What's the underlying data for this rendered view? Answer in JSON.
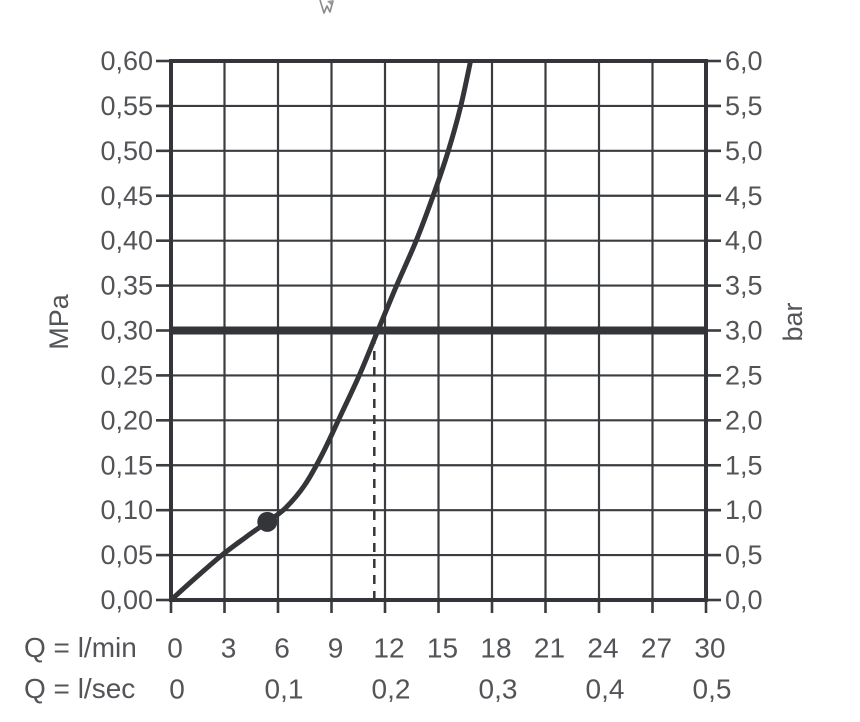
{
  "page": {
    "background": "#ffffff",
    "description_not_rendered": ""
  },
  "chart_data": {
    "type": "line",
    "grid": true,
    "colors": {
      "line": "#333539",
      "grid": "#3a3c3f",
      "text": "#525457",
      "background": "#ffffff"
    },
    "x_axis": {
      "label_lmin": "Q = l/min",
      "label_lsec": "Q = l/sec",
      "min": 0,
      "max": 30,
      "step": 3,
      "ticks_lmin": [
        {
          "q": 0,
          "label": "0"
        },
        {
          "q": 3,
          "label": "3"
        },
        {
          "q": 6,
          "label": "6"
        },
        {
          "q": 9,
          "label": "9"
        },
        {
          "q": 12,
          "label": "12"
        },
        {
          "q": 15,
          "label": "15"
        },
        {
          "q": 18,
          "label": "18"
        },
        {
          "q": 21,
          "label": "21"
        },
        {
          "q": 24,
          "label": "24"
        },
        {
          "q": 27,
          "label": "27"
        },
        {
          "q": 30,
          "label": "30"
        }
      ],
      "ticks_lsec": [
        {
          "q": 0,
          "label": "0"
        },
        {
          "q": 6,
          "label": "0,1"
        },
        {
          "q": 12,
          "label": "0,2"
        },
        {
          "q": 18,
          "label": "0,3"
        },
        {
          "q": 24,
          "label": "0,4"
        },
        {
          "q": 30,
          "label": "0,5"
        }
      ]
    },
    "y_left": {
      "label": "MPa",
      "min": 0,
      "max": 0.6,
      "step": 0.05
    },
    "y_right": {
      "label": "bar",
      "min": 0,
      "max": 6,
      "step": 0.5
    },
    "y_rows": [
      {
        "v": 0.6,
        "mpa": "0,60",
        "bar": "6,0"
      },
      {
        "v": 0.55,
        "mpa": "0,55",
        "bar": "5,5"
      },
      {
        "v": 0.5,
        "mpa": "0,50",
        "bar": "5,0"
      },
      {
        "v": 0.45,
        "mpa": "0,45",
        "bar": "4,5"
      },
      {
        "v": 0.4,
        "mpa": "0,40",
        "bar": "4,0"
      },
      {
        "v": 0.35,
        "mpa": "0,35",
        "bar": "3,5"
      },
      {
        "v": 0.3,
        "mpa": "0,30",
        "bar": "3,0"
      },
      {
        "v": 0.25,
        "mpa": "0,25",
        "bar": "2,5"
      },
      {
        "v": 0.2,
        "mpa": "0,20",
        "bar": "2,0"
      },
      {
        "v": 0.15,
        "mpa": "0,15",
        "bar": "1,5"
      },
      {
        "v": 0.1,
        "mpa": "0,10",
        "bar": "1,0"
      },
      {
        "v": 0.05,
        "mpa": "0,05",
        "bar": "0,5"
      },
      {
        "v": 0.0,
        "mpa": "0,00",
        "bar": "0,0"
      }
    ],
    "series": [
      {
        "name": "flow-curve",
        "points": [
          [
            0,
            0.0
          ],
          [
            1.4,
            0.025
          ],
          [
            2.86,
            0.05
          ],
          [
            4.2,
            0.07
          ],
          [
            5.4,
            0.087
          ],
          [
            6.4,
            0.102
          ],
          [
            7.5,
            0.128
          ],
          [
            8.5,
            0.163
          ],
          [
            9.5,
            0.205
          ],
          [
            10.6,
            0.252
          ],
          [
            11.6,
            0.3
          ],
          [
            12.65,
            0.35
          ],
          [
            13.75,
            0.4
          ],
          [
            14.7,
            0.45
          ],
          [
            15.55,
            0.5
          ],
          [
            16.25,
            0.55
          ],
          [
            16.85,
            0.605
          ]
        ]
      }
    ],
    "marker_point": {
      "q_lmin": 5.4,
      "p_mpa": 0.087
    },
    "pressure_reference_line": {
      "p_mpa": 0.3,
      "bar": 3.0
    },
    "dashed_guide": {
      "q_lmin": 11.4,
      "to_p_mpa": 0.3
    }
  }
}
